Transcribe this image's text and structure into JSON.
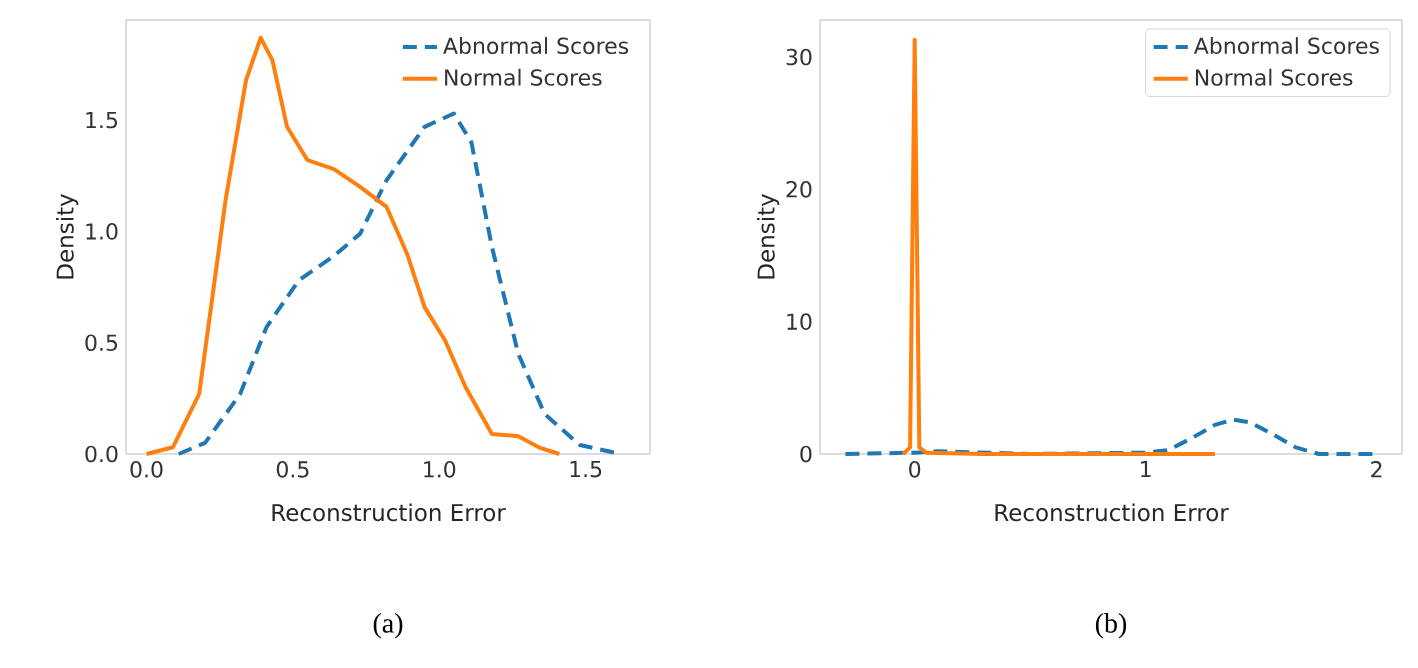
{
  "chart_data": [
    {
      "type": "line",
      "xlabel": "Reconstruction Error",
      "ylabel": "Density",
      "xlim": [
        -0.07,
        1.72
      ],
      "ylim": [
        0,
        1.95
      ],
      "xticks": [
        {
          "value": 0,
          "label": "0.0"
        },
        0.5,
        {
          "value": 1,
          "label": "1.0"
        },
        1.5
      ],
      "yticks": [
        {
          "value": 0,
          "label": "0.0"
        },
        0.5,
        {
          "value": 1,
          "label": "1.0"
        },
        1.5
      ],
      "legend": "top right",
      "grid": false,
      "marker": "none",
      "annotations": [
        "(a)"
      ],
      "series": [
        {
          "name": "Abnormal Scores",
          "color": "#1f77b4",
          "line_style": "dashed",
          "x": [
            0.11,
            0.2,
            0.32,
            0.41,
            0.52,
            0.64,
            0.73,
            0.82,
            0.95,
            1.05,
            1.11,
            1.18,
            1.27,
            1.36,
            1.48,
            1.62
          ],
          "values": [
            0,
            0.05,
            0.27,
            0.57,
            0.78,
            0.89,
            0.99,
            1.23,
            1.47,
            1.53,
            1.4,
            0.93,
            0.45,
            0.18,
            0.04,
            0
          ]
        },
        {
          "name": "Normal Scores",
          "color": "#ff7f0e",
          "line_style": "solid",
          "x": [
            0.0,
            0.09,
            0.18,
            0.27,
            0.34,
            0.39,
            0.43,
            0.48,
            0.55,
            0.64,
            0.73,
            0.82,
            0.89,
            0.95,
            1.02,
            1.09,
            1.18,
            1.27,
            1.34,
            1.41
          ],
          "values": [
            0,
            0.03,
            0.27,
            1.14,
            1.68,
            1.87,
            1.77,
            1.47,
            1.32,
            1.28,
            1.2,
            1.11,
            0.9,
            0.66,
            0.51,
            0.3,
            0.09,
            0.08,
            0.03,
            0
          ]
        }
      ]
    },
    {
      "type": "line",
      "xlabel": "Reconstruction Error",
      "ylabel": "Density",
      "xlim": [
        -0.41,
        2.11
      ],
      "ylim": [
        0,
        32.8
      ],
      "xticks": [
        0,
        1,
        2
      ],
      "yticks": [
        0,
        10,
        20,
        30
      ],
      "legend": "top right",
      "grid": false,
      "marker": "none",
      "annotations": [
        "(b)"
      ],
      "series": [
        {
          "name": "Abnormal Scores",
          "color": "#1f77b4",
          "line_style": "dashed",
          "x": [
            -0.3,
            0,
            0.1,
            0.5,
            1.0,
            1.1,
            1.2,
            1.3,
            1.38,
            1.45,
            1.55,
            1.65,
            1.75,
            2.0
          ],
          "values": [
            0,
            0.1,
            0.2,
            0,
            0.1,
            0.3,
            1.2,
            2.2,
            2.6,
            2.4,
            1.5,
            0.5,
            0,
            0
          ]
        },
        {
          "name": "Normal Scores",
          "color": "#ff7f0e",
          "line_style": "solid",
          "x": [
            -0.05,
            -0.02,
            0,
            0.02,
            0.05,
            0.3,
            1.0,
            1.3
          ],
          "values": [
            0,
            0.5,
            31.3,
            0.5,
            0.1,
            0,
            0,
            0
          ]
        }
      ]
    }
  ]
}
